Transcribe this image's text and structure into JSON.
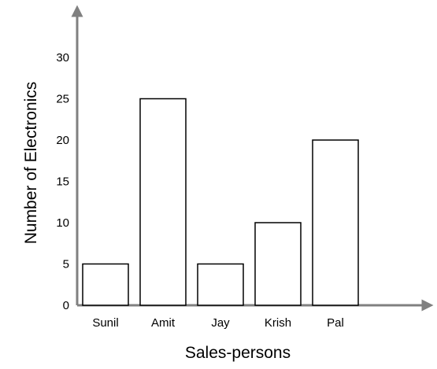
{
  "chart_data": {
    "type": "bar",
    "title": "",
    "xlabel": "Sales-persons",
    "ylabel": "Number of Electronics",
    "categories": [
      "Sunil",
      "Amit",
      "Jay",
      "Krish",
      "Pal"
    ],
    "values": [
      5,
      25,
      5,
      10,
      20
    ],
    "yticks": [
      "0",
      "5",
      "10",
      "15",
      "20",
      "25",
      "30"
    ],
    "ylim": [
      0,
      30
    ],
    "grid": false,
    "bar_fill": "#ffffff",
    "bar_stroke": "#000000",
    "axis_color": "#808080"
  }
}
